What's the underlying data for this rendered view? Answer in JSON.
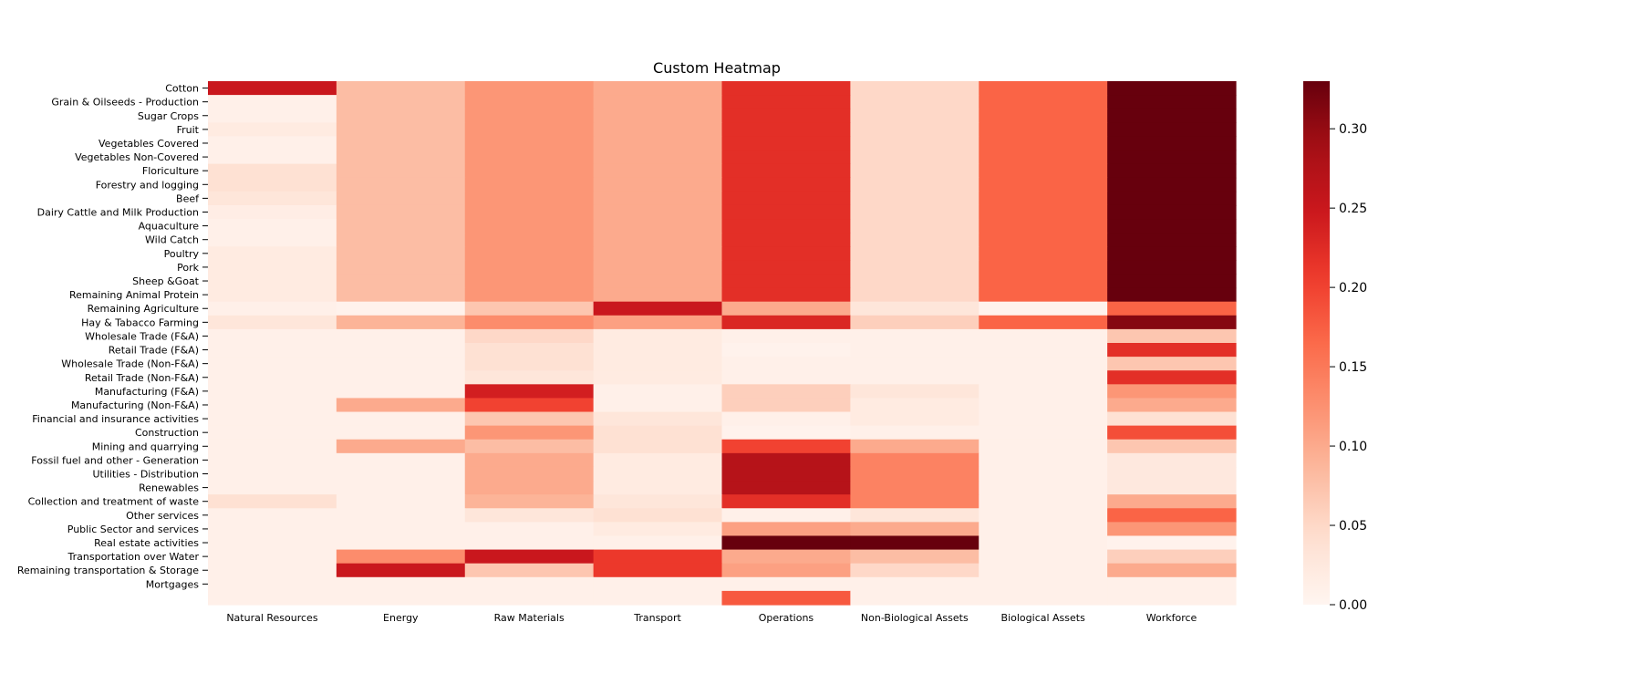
{
  "chart_data": {
    "type": "heatmap",
    "title": "Custom Heatmap",
    "colormap": "Reds",
    "vmin": 0.0,
    "vmax": 0.33,
    "colorbar_ticks": [
      "0.00",
      "0.05",
      "0.10",
      "0.15",
      "0.20",
      "0.25",
      "0.30"
    ],
    "columns": [
      "Natural Resources",
      "Energy",
      "Raw Materials",
      "Transport",
      "Operations",
      "Non-Biological Assets",
      "Biological Assets",
      "Workforce"
    ],
    "rows": [
      {
        "label": "Cotton",
        "values": [
          0.25,
          0.08,
          0.12,
          0.1,
          0.22,
          0.05,
          0.17,
          0.33
        ]
      },
      {
        "label": "Grain & Oilseeds - Production",
        "values": [
          0.01,
          0.08,
          0.12,
          0.1,
          0.22,
          0.05,
          0.17,
          0.33
        ]
      },
      {
        "label": "Sugar Crops",
        "values": [
          0.01,
          0.08,
          0.12,
          0.1,
          0.22,
          0.05,
          0.17,
          0.33
        ]
      },
      {
        "label": "Fruit",
        "values": [
          0.02,
          0.08,
          0.12,
          0.1,
          0.22,
          0.05,
          0.17,
          0.33
        ]
      },
      {
        "label": "Vegetables Covered",
        "values": [
          0.01,
          0.08,
          0.12,
          0.1,
          0.22,
          0.05,
          0.17,
          0.33
        ]
      },
      {
        "label": "Vegetables Non-Covered",
        "values": [
          0.01,
          0.08,
          0.12,
          0.1,
          0.22,
          0.05,
          0.17,
          0.33
        ]
      },
      {
        "label": "Floriculture",
        "values": [
          0.04,
          0.08,
          0.12,
          0.1,
          0.22,
          0.05,
          0.17,
          0.33
        ]
      },
      {
        "label": "Forestry and logging",
        "values": [
          0.04,
          0.08,
          0.12,
          0.1,
          0.22,
          0.05,
          0.17,
          0.33
        ]
      },
      {
        "label": "Beef",
        "values": [
          0.03,
          0.08,
          0.12,
          0.1,
          0.22,
          0.05,
          0.17,
          0.33
        ]
      },
      {
        "label": "Dairy Cattle and Milk Production",
        "values": [
          0.015,
          0.08,
          0.12,
          0.1,
          0.22,
          0.05,
          0.17,
          0.33
        ]
      },
      {
        "label": "Aquaculture",
        "values": [
          0.01,
          0.08,
          0.12,
          0.1,
          0.22,
          0.05,
          0.17,
          0.33
        ]
      },
      {
        "label": "Wild Catch",
        "values": [
          0.01,
          0.08,
          0.12,
          0.1,
          0.22,
          0.05,
          0.17,
          0.33
        ]
      },
      {
        "label": "Poultry",
        "values": [
          0.02,
          0.08,
          0.12,
          0.1,
          0.22,
          0.05,
          0.17,
          0.33
        ]
      },
      {
        "label": "Pork",
        "values": [
          0.02,
          0.08,
          0.12,
          0.1,
          0.22,
          0.05,
          0.17,
          0.33
        ]
      },
      {
        "label": "Sheep &Goat",
        "values": [
          0.02,
          0.08,
          0.12,
          0.1,
          0.22,
          0.05,
          0.17,
          0.33
        ]
      },
      {
        "label": "Remaining Animal Protein",
        "values": [
          0.02,
          0.08,
          0.12,
          0.1,
          0.22,
          0.05,
          0.17,
          0.33
        ]
      },
      {
        "label": "Remaining Agriculture",
        "values": [
          0.01,
          0.005,
          0.07,
          0.25,
          0.1,
          0.03,
          0.005,
          0.17
        ]
      },
      {
        "label": "Hay & Tabacco Farming",
        "values": [
          0.03,
          0.09,
          0.13,
          0.11,
          0.23,
          0.06,
          0.17,
          0.31
        ]
      },
      {
        "label": "Wholesale Trade (F&A)",
        "values": [
          0.01,
          0.01,
          0.05,
          0.02,
          0.01,
          0.01,
          0.01,
          0.07
        ]
      },
      {
        "label": "Retail Trade (F&A)",
        "values": [
          0.01,
          0.01,
          0.04,
          0.02,
          0.005,
          0.01,
          0.01,
          0.22
        ]
      },
      {
        "label": "Wholesale Trade (Non-F&A)",
        "values": [
          0.01,
          0.01,
          0.04,
          0.02,
          0.01,
          0.01,
          0.01,
          0.07
        ]
      },
      {
        "label": "Retail Trade (Non-F&A)",
        "values": [
          0.01,
          0.01,
          0.03,
          0.02,
          0.01,
          0.01,
          0.01,
          0.22
        ]
      },
      {
        "label": "Manufacturing (F&A)",
        "values": [
          0.01,
          0.01,
          0.24,
          0.01,
          0.06,
          0.03,
          0.01,
          0.12
        ]
      },
      {
        "label": "Manufacturing (Non-F&A)",
        "values": [
          0.01,
          0.1,
          0.2,
          0.01,
          0.06,
          0.02,
          0.01,
          0.1
        ]
      },
      {
        "label": "Financial and insurance activities",
        "values": [
          0.01,
          0.01,
          0.07,
          0.03,
          0.01,
          0.02,
          0.01,
          0.04
        ]
      },
      {
        "label": "Construction",
        "values": [
          0.01,
          0.01,
          0.12,
          0.04,
          0.005,
          0.01,
          0.01,
          0.19
        ]
      },
      {
        "label": "Mining and quarrying",
        "values": [
          0.01,
          0.1,
          0.08,
          0.04,
          0.2,
          0.1,
          0.01,
          0.07
        ]
      },
      {
        "label": "Fossil fuel and other - Generation",
        "values": [
          0.01,
          0.01,
          0.1,
          0.02,
          0.27,
          0.14,
          0.01,
          0.025
        ]
      },
      {
        "label": "Utilities - Distribution",
        "values": [
          0.01,
          0.01,
          0.1,
          0.02,
          0.27,
          0.14,
          0.01,
          0.025
        ]
      },
      {
        "label": "Renewables",
        "values": [
          0.01,
          0.01,
          0.1,
          0.02,
          0.27,
          0.14,
          0.01,
          0.025
        ]
      },
      {
        "label": "Collection and treatment of waste",
        "values": [
          0.04,
          0.01,
          0.09,
          0.03,
          0.22,
          0.14,
          0.01,
          0.1
        ]
      },
      {
        "label": "Other services",
        "values": [
          0.01,
          0.01,
          0.03,
          0.04,
          0.01,
          0.03,
          0.01,
          0.17
        ]
      },
      {
        "label": "Public Sector and services",
        "values": [
          0.01,
          0.01,
          0.01,
          0.02,
          0.11,
          0.1,
          0.01,
          0.12
        ]
      },
      {
        "label": "Real estate activities",
        "values": [
          0.01,
          0.01,
          0.01,
          0.01,
          0.33,
          0.33,
          0.01,
          0.005
        ]
      },
      {
        "label": "Transportation over Water",
        "values": [
          0.01,
          0.13,
          0.25,
          0.21,
          0.1,
          0.08,
          0.01,
          0.06
        ]
      },
      {
        "label": "Remaining transportation & Storage",
        "values": [
          0.01,
          0.25,
          0.07,
          0.21,
          0.11,
          0.05,
          0.01,
          0.1
        ]
      },
      {
        "label": "Mortgages",
        "values": [
          0.01,
          0.01,
          0.01,
          0.01,
          0.01,
          0.01,
          0.01,
          0.01
        ]
      },
      {
        "label": "",
        "values": [
          0.01,
          0.01,
          0.01,
          0.01,
          0.18,
          0.01,
          0.01,
          0.01
        ]
      }
    ]
  }
}
